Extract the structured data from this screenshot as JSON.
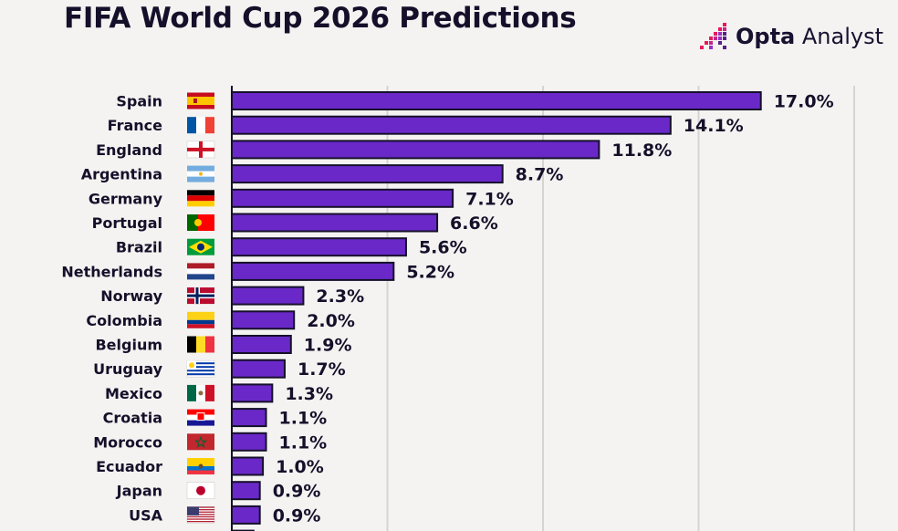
{
  "title": "FIFA World Cup 2026 Predictions",
  "logo": {
    "word1": "Opta",
    "word2": "Analyst",
    "icon": "opta-mark-icon",
    "colors": [
      "#e8195a",
      "#9a2fc4",
      "#5a1f8a"
    ]
  },
  "colors": {
    "bar": "#6a28c8",
    "bar_stroke": "#15102a",
    "text": "#15102a",
    "grid": "#d6d4d0",
    "background": "#f4f3f1"
  },
  "chart_data": {
    "type": "bar",
    "orientation": "horizontal",
    "value_suffix": "%",
    "xlim": [
      0,
      20
    ],
    "grid": true,
    "categories": [
      "Spain",
      "France",
      "England",
      "Argentina",
      "Germany",
      "Portugal",
      "Brazil",
      "Netherlands",
      "Norway",
      "Colombia",
      "Belgium",
      "Uruguay",
      "Mexico",
      "Croatia",
      "Morocco",
      "Ecuador",
      "Japan",
      "USA"
    ],
    "value_labels": [
      "17.0%",
      "14.1%",
      "11.8%",
      "8.7%",
      "7.1%",
      "6.6%",
      "5.6%",
      "5.2%",
      "2.3%",
      "2.0%",
      "1.9%",
      "1.7%",
      "1.3%",
      "1.1%",
      "1.1%",
      "1.0%",
      "0.9%",
      "0.9%"
    ],
    "values": [
      17.0,
      14.1,
      11.8,
      8.7,
      7.1,
      6.6,
      5.6,
      5.2,
      2.3,
      2.0,
      1.9,
      1.7,
      1.3,
      1.1,
      1.1,
      1.0,
      0.9,
      0.9
    ],
    "flags": [
      "spain-flag-icon",
      "france-flag-icon",
      "england-flag-icon",
      "argentina-flag-icon",
      "germany-flag-icon",
      "portugal-flag-icon",
      "brazil-flag-icon",
      "netherlands-flag-icon",
      "norway-flag-icon",
      "colombia-flag-icon",
      "belgium-flag-icon",
      "uruguay-flag-icon",
      "mexico-flag-icon",
      "croatia-flag-icon",
      "morocco-flag-icon",
      "ecuador-flag-icon",
      "japan-flag-icon",
      "usa-flag-icon"
    ]
  }
}
